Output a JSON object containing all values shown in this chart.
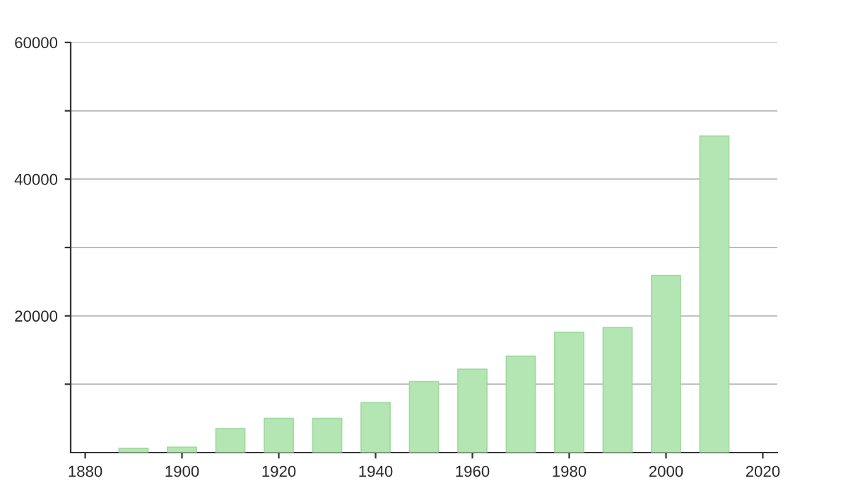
{
  "chart_data": {
    "type": "bar",
    "x": [
      1890,
      1900,
      1910,
      1920,
      1930,
      1940,
      1950,
      1960,
      1970,
      1980,
      1990,
      2000,
      2010
    ],
    "values": [
      600,
      800,
      3500,
      5000,
      5000,
      7300,
      10400,
      12200,
      14100,
      17600,
      18300,
      25900,
      46300
    ],
    "color": "#b3e6b3",
    "xlim": [
      1877,
      2023
    ],
    "xticks": [
      1880,
      1900,
      1920,
      1940,
      1960,
      1980,
      2000,
      2020
    ],
    "ylim": [
      0,
      60000
    ],
    "yticks": [
      {
        "value": 10000,
        "label": null
      },
      20000,
      {
        "value": 30000,
        "label": null
      },
      40000,
      {
        "value": 50000,
        "label": null
      },
      60000
    ],
    "grid": "y"
  }
}
